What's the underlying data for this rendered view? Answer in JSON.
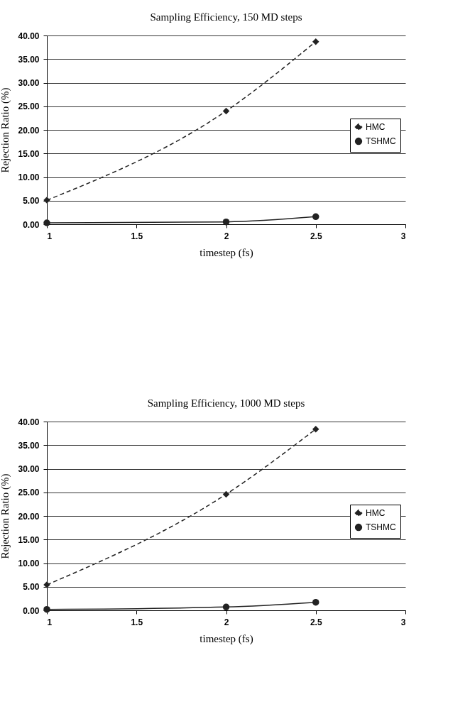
{
  "chart_data": [
    {
      "type": "line",
      "title": "Sampling Efficiency, 150 MD steps",
      "xlabel": "timestep (fs)",
      "ylabel": "Rejection Ratio (%)",
      "x": [
        1,
        2,
        2.5
      ],
      "series": [
        {
          "name": "HMC",
          "color": "#222222",
          "values": [
            5.1,
            24.0,
            38.7
          ],
          "marker": "diamond",
          "line_style": "dashed"
        },
        {
          "name": "TSHMC",
          "color": "#222222",
          "values": [
            0.3,
            0.5,
            1.6
          ],
          "marker": "circle",
          "line_style": "solid"
        }
      ],
      "xlim": [
        1,
        3
      ],
      "xticks": [
        1,
        1.5,
        2,
        2.5,
        3
      ],
      "ylim": [
        0,
        40
      ],
      "yticks": [
        {
          "value": 0,
          "label": "0.00"
        },
        {
          "value": 5,
          "label": "5.00"
        },
        {
          "value": 10,
          "label": "10.00"
        },
        {
          "value": 15,
          "label": "15.00"
        },
        {
          "value": 20,
          "label": "20.00"
        },
        {
          "value": 25,
          "label": "25.00"
        },
        {
          "value": 30,
          "label": "30.00"
        },
        {
          "value": 35,
          "label": "35.00"
        },
        {
          "value": 40,
          "label": "40.00"
        }
      ],
      "grid": "y",
      "legend": "right"
    },
    {
      "type": "line",
      "title": "Sampling Efficiency, 1000 MD steps",
      "xlabel": "timestep (fs)",
      "ylabel": "Rejection Ratio (%)",
      "x": [
        1,
        2,
        2.5
      ],
      "series": [
        {
          "name": "HMC",
          "color": "#222222",
          "values": [
            5.4,
            24.6,
            38.4
          ],
          "marker": "diamond",
          "line_style": "dashed"
        },
        {
          "name": "TSHMC",
          "color": "#222222",
          "values": [
            0.2,
            0.7,
            1.7
          ],
          "marker": "circle",
          "line_style": "solid"
        }
      ],
      "xlim": [
        1,
        3
      ],
      "xticks": [
        1,
        1.5,
        2,
        2.5,
        3
      ],
      "ylim": [
        0,
        40
      ],
      "yticks": [
        {
          "value": 0,
          "label": "0.00"
        },
        {
          "value": 5,
          "label": "5.00"
        },
        {
          "value": 10,
          "label": "10.00"
        },
        {
          "value": 15,
          "label": "15.00"
        },
        {
          "value": 20,
          "label": "20.00"
        },
        {
          "value": 25,
          "label": "25.00"
        },
        {
          "value": 30,
          "label": "30.00"
        },
        {
          "value": 35,
          "label": "35.00"
        },
        {
          "value": 40,
          "label": "40.00"
        }
      ],
      "grid": "y",
      "legend": "right"
    }
  ]
}
